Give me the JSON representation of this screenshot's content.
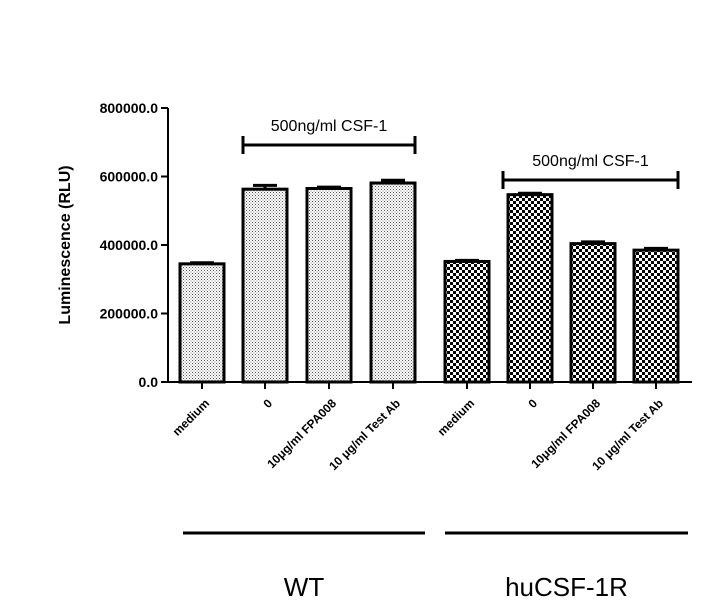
{
  "chart_data": {
    "type": "bar",
    "title": "",
    "xlabel": "",
    "ylabel": "Luminescence (RLU)",
    "ylim": [
      0,
      800000
    ],
    "yticks": [
      "0.0",
      "200000.0",
      "400000.0",
      "600000.0",
      "800000.0"
    ],
    "grid": false,
    "categories": [
      "medium",
      "0",
      "10μg/ml FPA008",
      "10 μg/ml Test Ab",
      "medium",
      "0",
      "10μg/ml FPA008",
      "10 μg/ml Test Ab"
    ],
    "values": [
      345000,
      563000,
      565000,
      581000,
      352000,
      547000,
      404000,
      385000
    ],
    "errors": [
      3000,
      11000,
      4000,
      8000,
      3000,
      4000,
      5000,
      5000
    ],
    "groups": [
      {
        "name": "WT",
        "bracket_label": "500ng/ml CSF-1",
        "pattern": "dots"
      },
      {
        "name": "huCSF-1R",
        "bracket_label": "500ng/ml CSF-1",
        "pattern": "checker"
      }
    ]
  }
}
